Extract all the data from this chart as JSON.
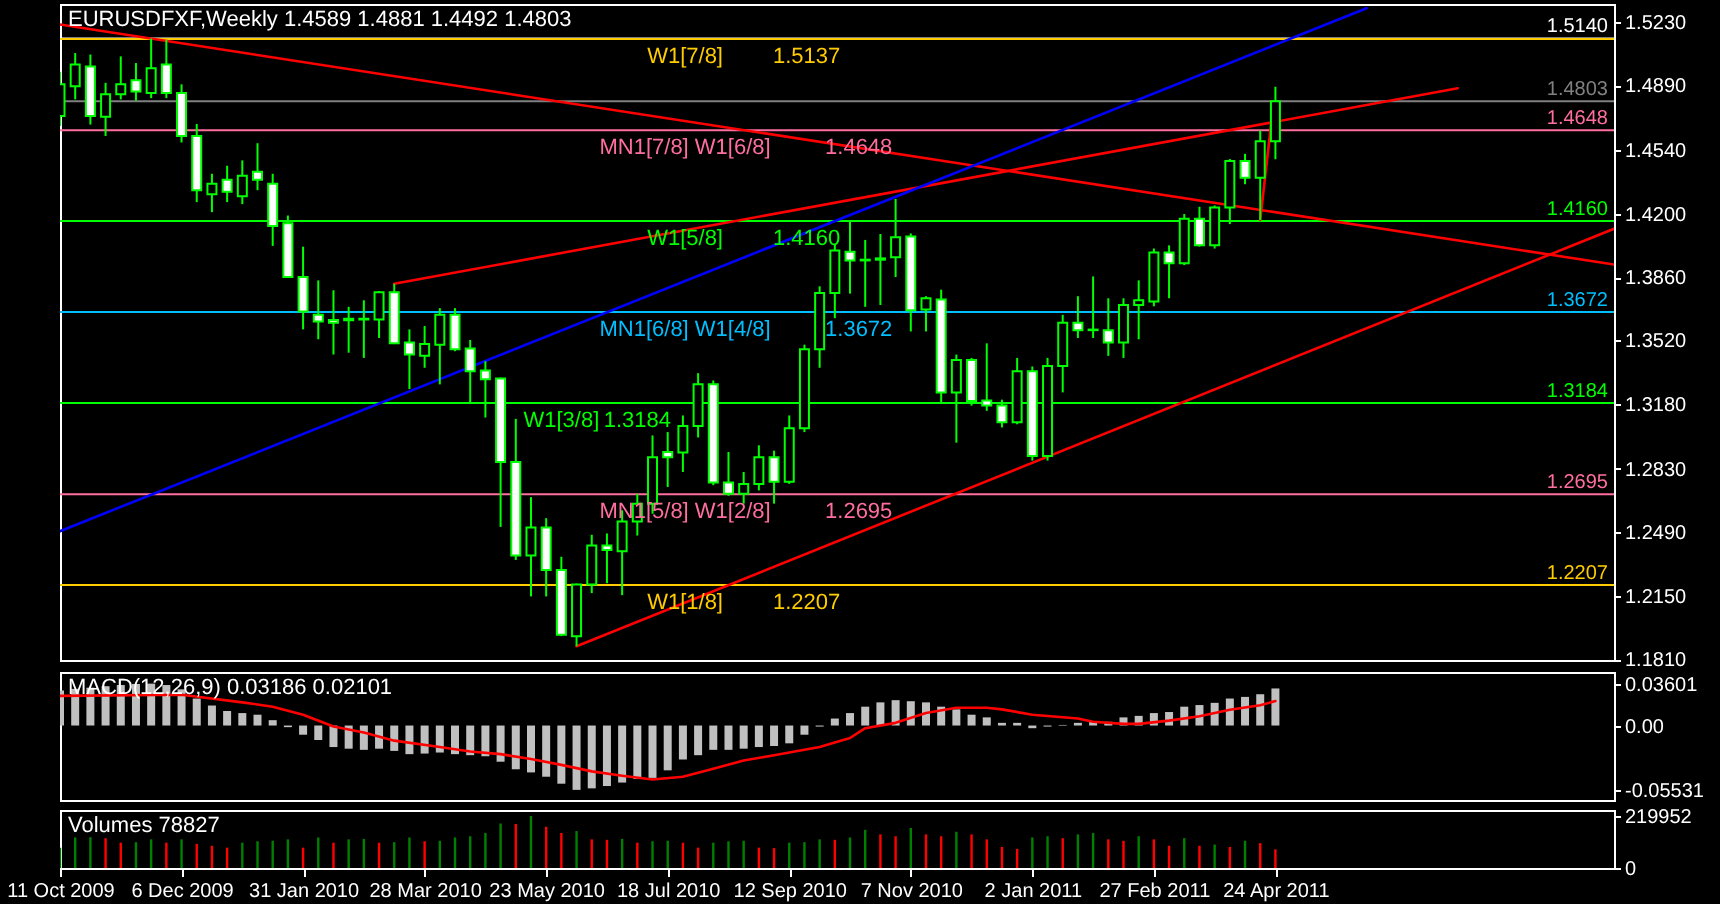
{
  "chart_data": [
    {
      "type": "candlestick",
      "title": "EURUSDFXF,Weekly  1.4589 1.4881 1.4492 1.4803",
      "x": [
        "2009-10-11",
        "2009-10-18",
        "2009-10-25",
        "2009-11-01",
        "2009-11-08",
        "2009-11-15",
        "2009-11-22",
        "2009-11-29",
        "2009-12-06",
        "2009-12-13",
        "2009-12-20",
        "2009-12-27",
        "2010-01-03",
        "2010-01-10",
        "2010-01-17",
        "2010-01-24",
        "2010-01-31",
        "2010-02-07",
        "2010-02-14",
        "2010-02-21",
        "2010-02-28",
        "2010-03-07",
        "2010-03-14",
        "2010-03-21",
        "2010-03-28",
        "2010-04-04",
        "2010-04-11",
        "2010-04-18",
        "2010-04-25",
        "2010-05-02",
        "2010-05-09",
        "2010-05-16",
        "2010-05-23",
        "2010-05-30",
        "2010-06-06",
        "2010-06-13",
        "2010-06-20",
        "2010-06-27",
        "2010-07-04",
        "2010-07-11",
        "2010-07-18",
        "2010-07-25",
        "2010-08-01",
        "2010-08-08",
        "2010-08-15",
        "2010-08-22",
        "2010-08-29",
        "2010-09-05",
        "2010-09-12",
        "2010-09-19",
        "2010-09-26",
        "2010-10-03",
        "2010-10-10",
        "2010-10-17",
        "2010-10-24",
        "2010-10-31",
        "2010-11-07",
        "2010-11-14",
        "2010-11-21",
        "2010-11-28",
        "2010-12-05",
        "2010-12-12",
        "2010-12-19",
        "2010-12-26",
        "2011-01-02",
        "2011-01-09",
        "2011-01-16",
        "2011-01-23",
        "2011-01-30",
        "2011-02-06",
        "2011-02-13",
        "2011-02-20",
        "2011-02-27",
        "2011-03-06",
        "2011-03-13",
        "2011-03-20",
        "2011-03-27",
        "2011-04-03",
        "2011-04-10",
        "2011-04-17",
        "2011-04-24"
      ],
      "ohlc": [
        [
          1.4724,
          1.4962,
          1.467,
          1.4894
        ],
        [
          1.4884,
          1.5062,
          1.4813,
          1.5001
        ],
        [
          1.499,
          1.5054,
          1.4678,
          1.4724
        ],
        [
          1.472,
          1.4902,
          1.4617,
          1.4841
        ],
        [
          1.4841,
          1.5044,
          1.4813,
          1.4894
        ],
        [
          1.4916,
          1.5008,
          1.4806,
          1.4855
        ],
        [
          1.4848,
          1.514,
          1.482,
          1.498
        ],
        [
          1.5001,
          1.5133,
          1.482,
          1.4848
        ],
        [
          1.4848,
          1.4894,
          1.4582,
          1.4617
        ],
        [
          1.4617,
          1.4681,
          1.4262,
          1.4326
        ],
        [
          1.4304,
          1.4414,
          1.4208,
          1.4361
        ],
        [
          1.4382,
          1.4457,
          1.4262,
          1.4318
        ],
        [
          1.4294,
          1.4486,
          1.4251,
          1.4404
        ],
        [
          1.4425,
          1.4578,
          1.4326,
          1.4382
        ],
        [
          1.4361,
          1.4414,
          1.4027,
          1.4134
        ],
        [
          1.4148,
          1.419,
          1.3858,
          1.386
        ],
        [
          1.386,
          1.4023,
          1.3579,
          1.3675
        ],
        [
          1.3657,
          1.3842,
          1.3526,
          1.3622
        ],
        [
          1.3629,
          1.3789,
          1.3444,
          1.3614
        ],
        [
          1.3628,
          1.37,
          1.3454,
          1.3636
        ],
        [
          1.3636,
          1.3735,
          1.3426,
          1.3632
        ],
        [
          1.3632,
          1.3785,
          1.3533,
          1.3778
        ],
        [
          1.3778,
          1.3824,
          1.35,
          1.3504
        ],
        [
          1.3508,
          1.3579,
          1.3259,
          1.3444
        ],
        [
          1.3437,
          1.3597,
          1.3373,
          1.3501
        ],
        [
          1.3497,
          1.3693,
          1.3284,
          1.3657
        ],
        [
          1.3657,
          1.3693,
          1.3462,
          1.3472
        ],
        [
          1.3476,
          1.3522,
          1.3188,
          1.3355
        ],
        [
          1.3358,
          1.3408,
          1.3106,
          1.3312
        ],
        [
          1.3316,
          1.332,
          1.2519,
          1.2868
        ],
        [
          1.2868,
          1.3099,
          1.2342,
          1.2366
        ],
        [
          1.2366,
          1.2679,
          1.2146,
          1.2516
        ],
        [
          1.2516,
          1.2566,
          1.2146,
          1.2288
        ],
        [
          1.2288,
          1.2359,
          1.1933,
          1.194
        ],
        [
          1.1933,
          1.2215,
          1.1879,
          1.221
        ],
        [
          1.221,
          1.2477,
          1.2164,
          1.242
        ],
        [
          1.242,
          1.2484,
          1.2217,
          1.2395
        ],
        [
          1.2388,
          1.2608,
          1.2153,
          1.2548
        ],
        [
          1.2548,
          1.2697,
          1.2473,
          1.2644
        ],
        [
          1.2644,
          1.301,
          1.259,
          1.2893
        ],
        [
          1.2921,
          1.3028,
          1.2733,
          1.2893
        ],
        [
          1.2918,
          1.3117,
          1.2814,
          1.306
        ],
        [
          1.306,
          1.3344,
          1.2999,
          1.3284
        ],
        [
          1.3284,
          1.3305,
          1.2743,
          1.2758
        ],
        [
          1.2758,
          1.2921,
          1.2686,
          1.2697
        ],
        [
          1.2697,
          1.2814,
          1.2644,
          1.275
        ],
        [
          1.275,
          1.2957,
          1.2715,
          1.2893
        ],
        [
          1.2893,
          1.2928,
          1.2644,
          1.2761
        ],
        [
          1.2761,
          1.3117,
          1.275,
          1.3049
        ],
        [
          1.3049,
          1.3497,
          1.3028,
          1.3472
        ],
        [
          1.3472,
          1.381,
          1.3373,
          1.3774
        ],
        [
          1.3774,
          1.4038,
          1.3639,
          1.4002
        ],
        [
          1.3995,
          1.4162,
          1.3771,
          1.3949
        ],
        [
          1.3949,
          1.4059,
          1.37,
          1.3953
        ],
        [
          1.3953,
          1.4091,
          1.371,
          1.396
        ],
        [
          1.3966,
          1.4279,
          1.386,
          1.4073
        ],
        [
          1.4077,
          1.4094,
          1.3568,
          1.3682
        ],
        [
          1.3686,
          1.3757,
          1.3568,
          1.3746
        ],
        [
          1.3739,
          1.3792,
          1.3188,
          1.3241
        ],
        [
          1.3241,
          1.3444,
          1.2971,
          1.3415
        ],
        [
          1.3415,
          1.3426,
          1.317,
          1.3195
        ],
        [
          1.3198,
          1.3504,
          1.3142,
          1.317
        ],
        [
          1.317,
          1.3202,
          1.3053,
          1.3081
        ],
        [
          1.3081,
          1.3426,
          1.307,
          1.3355
        ],
        [
          1.3355,
          1.338,
          1.2875,
          1.29
        ],
        [
          1.29,
          1.3426,
          1.2875,
          1.3383
        ],
        [
          1.3383,
          1.3657,
          1.3241,
          1.3614
        ],
        [
          1.3614,
          1.3757,
          1.3533,
          1.3575
        ],
        [
          1.3575,
          1.3863,
          1.3533,
          1.3578
        ],
        [
          1.3575,
          1.3746,
          1.3437,
          1.3508
        ],
        [
          1.3508,
          1.3746,
          1.3426,
          1.371
        ],
        [
          1.371,
          1.3842,
          1.3526,
          1.3735
        ],
        [
          1.3728,
          1.4013,
          1.3703,
          1.3991
        ],
        [
          1.3991,
          1.403,
          1.3746,
          1.3934
        ],
        [
          1.3934,
          1.4198,
          1.3924,
          1.4173
        ],
        [
          1.4173,
          1.4237,
          1.4023,
          1.403
        ],
        [
          1.403,
          1.4244,
          1.4013,
          1.4233
        ],
        [
          1.4233,
          1.4493,
          1.4144,
          1.4482
        ],
        [
          1.4482,
          1.4521,
          1.4358,
          1.4393
        ],
        [
          1.4393,
          1.4646,
          1.4166,
          1.4589
        ],
        [
          1.4589,
          1.4881,
          1.4492,
          1.4803
        ]
      ],
      "color": "#00ff00",
      "colors": [
        "#000000",
        "#000000",
        "#ffffff",
        "#000000",
        "#000000",
        "#ffffff",
        "#000000",
        "#ffffff",
        "#ffffff",
        "#ffffff",
        "#000000",
        "#ffffff",
        "#000000",
        "#ffffff",
        "#ffffff",
        "#ffffff",
        "#ffffff",
        "#ffffff",
        "#ffffff",
        "#000000",
        "#ffffff",
        "#000000",
        "#ffffff",
        "#ffffff",
        "#000000",
        "#000000",
        "#ffffff",
        "#ffffff",
        "#ffffff",
        "#ffffff",
        "#ffffff",
        "#000000",
        "#ffffff",
        "#ffffff",
        "#000000",
        "#000000",
        "#ffffff",
        "#000000",
        "#000000",
        "#000000",
        "#ffffff",
        "#000000",
        "#000000",
        "#ffffff",
        "#ffffff",
        "#000000",
        "#000000",
        "#ffffff",
        "#000000",
        "#000000",
        "#000000",
        "#000000",
        "#ffffff",
        "#000000",
        "#000000",
        "#000000",
        "#ffffff",
        "#000000",
        "#ffffff",
        "#000000",
        "#ffffff",
        "#ffffff",
        "#ffffff",
        "#000000",
        "#ffffff",
        "#000000",
        "#000000",
        "#ffffff",
        "#000000",
        "#ffffff",
        "#000000",
        "#000000",
        "#000000",
        "#ffffff",
        "#000000",
        "#ffffff",
        "#000000",
        "#000000",
        "#ffffff",
        "#000000",
        "#000000"
      ],
      "series": [
        {
          "type": "line",
          "color": "#ff0000",
          "x": [
            "2009-10-11",
            "2011-09-27"
          ],
          "values": [
            1.5215,
            1.3927
          ]
        },
        {
          "type": "line",
          "color": "#ff0000",
          "x": [
            "2010-03-14",
            "2011-07-17"
          ],
          "values": [
            1.3824,
            1.4873
          ]
        },
        {
          "type": "line",
          "color": "#0000ff",
          "x": [
            "2009-10-11",
            "2011-06-05"
          ],
          "values": [
            1.2496,
            1.5302
          ]
        },
        {
          "type": "line",
          "color": "#ff0000",
          "x": [
            "2010-06-06",
            "2011-09-27"
          ],
          "values": [
            1.1879,
            1.4119
          ]
        },
        {
          "type": "line",
          "color": "#ff0000",
          "x": [
            "2011-04-17",
            "2011-04-22"
          ],
          "values": [
            1.4166,
            1.468
          ]
        }
      ],
      "ref_lines": [
        {
          "axis": "y",
          "value": 1.514,
          "label": "1.5140",
          "color": "#ffffff"
        },
        {
          "axis": "y",
          "value": 1.5137,
          "color": "#ffcc00"
        },
        {
          "axis": "y",
          "value": 1.4803,
          "label": "1.4803",
          "color": "#808080"
        },
        {
          "axis": "y",
          "value": 1.4648,
          "label": "1.4648",
          "color": "#ff6e9e"
        },
        {
          "axis": "y",
          "value": 1.416,
          "label": "1.4160",
          "color": "#00ff00"
        },
        {
          "axis": "y",
          "value": 1.3672,
          "label": "1.3672",
          "color": "#00bfff"
        },
        {
          "axis": "y",
          "value": 1.3184,
          "label": "1.3184",
          "color": "#00ff00"
        },
        {
          "axis": "y",
          "value": 1.2695,
          "label": "1.2695",
          "color": "#ff6e9e"
        },
        {
          "axis": "y",
          "value": 1.2207,
          "label": "1.2207",
          "color": "#ffcc00"
        }
      ],
      "annotations": [
        {
          "text": "W1[7/8]",
          "x": "2010-07-26",
          "y": 1.5137
        },
        {
          "text": "1.5137",
          "x": "2010-09-20",
          "y": 1.5137
        },
        {
          "text": "MN1[7/8] W1[6/8]",
          "x": "2010-07-26",
          "y": 1.4648
        },
        {
          "text": "1.4648",
          "x": "2010-10-14",
          "y": 1.4648
        },
        {
          "text": "W1[5/8]",
          "x": "2010-07-26",
          "y": 1.416
        },
        {
          "text": "1.4160",
          "x": "2010-09-20",
          "y": 1.416
        },
        {
          "text": "MN1[6/8] W1[4/8]",
          "x": "2010-07-26",
          "y": 1.3672
        },
        {
          "text": "1.3672",
          "x": "2010-10-14",
          "y": 1.3672
        },
        {
          "text": "W1[3/8]",
          "x": "2010-05-30",
          "y": 1.3184
        },
        {
          "text": "1.3184",
          "x": "2010-07-04",
          "y": 1.3184
        },
        {
          "text": "MN1[5/8] W1[2/8]",
          "x": "2010-07-26",
          "y": 1.2695
        },
        {
          "text": "1.2695",
          "x": "2010-10-14",
          "y": 1.2695
        },
        {
          "text": "W1[1/8]",
          "x": "2010-07-26",
          "y": 1.2207
        },
        {
          "text": "1.2207",
          "x": "2010-09-20",
          "y": 1.2207
        }
      ],
      "xlim": [
        "2009-10-11",
        "2011-09-27"
      ],
      "ylim": [
        1.1805,
        1.5325
      ],
      "yticks": [
        {
          "value": 1.523,
          "label": "1.5230"
        },
        {
          "value": 1.489,
          "label": "1.4890"
        },
        {
          "value": 1.454,
          "label": "1.4540"
        },
        {
          "value": 1.42,
          "label": "1.4200"
        },
        {
          "value": 1.386,
          "label": "1.3860"
        },
        {
          "value": 1.352,
          "label": "1.3520"
        },
        {
          "value": 1.318,
          "label": "1.3180"
        },
        {
          "value": 1.283,
          "label": "1.2830"
        },
        {
          "value": 1.249,
          "label": "1.2490"
        },
        {
          "value": 1.215,
          "label": "1.2150"
        },
        {
          "value": 1.181,
          "label": "1.1810"
        }
      ],
      "tick_labels": "y"
    },
    {
      "type": "bar",
      "title": "MACD(12,26,9) 0.03186 0.02101",
      "x": [
        "2009-10-11",
        "2009-10-18",
        "2009-10-25",
        "2009-11-01",
        "2009-11-08",
        "2009-11-15",
        "2009-11-22",
        "2009-11-29",
        "2009-12-06",
        "2009-12-13",
        "2009-12-20",
        "2009-12-27",
        "2010-01-03",
        "2010-01-10",
        "2010-01-17",
        "2010-01-24",
        "2010-01-31",
        "2010-02-07",
        "2010-02-14",
        "2010-02-21",
        "2010-02-28",
        "2010-03-07",
        "2010-03-14",
        "2010-03-21",
        "2010-03-28",
        "2010-04-04",
        "2010-04-11",
        "2010-04-18",
        "2010-04-25",
        "2010-05-02",
        "2010-05-09",
        "2010-05-16",
        "2010-05-23",
        "2010-05-30",
        "2010-06-06",
        "2010-06-13",
        "2010-06-20",
        "2010-06-27",
        "2010-07-04",
        "2010-07-11",
        "2010-07-18",
        "2010-07-25",
        "2010-08-01",
        "2010-08-08",
        "2010-08-15",
        "2010-08-22",
        "2010-08-29",
        "2010-09-05",
        "2010-09-12",
        "2010-09-19",
        "2010-09-26",
        "2010-10-03",
        "2010-10-10",
        "2010-10-17",
        "2010-10-24",
        "2010-10-31",
        "2010-11-07",
        "2010-11-14",
        "2010-11-21",
        "2010-11-28",
        "2010-12-05",
        "2010-12-12",
        "2010-12-19",
        "2010-12-26",
        "2011-01-02",
        "2011-01-09",
        "2011-01-16",
        "2011-01-23",
        "2011-01-30",
        "2011-02-06",
        "2011-02-13",
        "2011-02-20",
        "2011-02-27",
        "2011-03-06",
        "2011-03-13",
        "2011-03-20",
        "2011-03-27",
        "2011-04-03",
        "2011-04-10",
        "2011-04-17",
        "2011-04-24"
      ],
      "series": [
        {
          "type": "bar",
          "color": "#c0c0c0",
          "values": [
            0.0301,
            0.0315,
            0.0325,
            0.0338,
            0.0348,
            0.0357,
            0.03601,
            0.0348,
            0.0311,
            0.0232,
            0.0172,
            0.0125,
            0.0107,
            0.0093,
            0.0046,
            -0.0014,
            -0.0079,
            -0.0125,
            -0.0185,
            -0.0199,
            -0.0209,
            -0.0199,
            -0.0218,
            -0.0246,
            -0.0241,
            -0.0232,
            -0.0246,
            -0.0255,
            -0.0264,
            -0.0311,
            -0.0376,
            -0.0403,
            -0.044,
            -0.05,
            -0.05531,
            -0.054,
            -0.052,
            -0.049,
            -0.046,
            -0.045,
            -0.0385,
            -0.0292,
            -0.0255,
            -0.0209,
            -0.0209,
            -0.0199,
            -0.0185,
            -0.0176,
            -0.0153,
            -0.0079,
            -0.0009,
            0.006,
            0.0107,
            0.0162,
            0.0199,
            0.0218,
            0.0209,
            0.0199,
            0.0162,
            0.0139,
            0.0093,
            0.007,
            0.0023,
            0.0023,
            -0.0023,
            -0.0009,
            0.0005,
            0.0023,
            0.0032,
            0.0032,
            0.007,
            0.0083,
            0.0107,
            0.0116,
            0.0162,
            0.0176,
            0.0195,
            0.0232,
            0.0246,
            0.0269,
            0.03186
          ]
        },
        {
          "type": "line",
          "color": "#ff0000",
          "x": [
            "2009-10-11",
            "2009-12-06",
            "2010-01-03",
            "2010-01-17",
            "2010-01-31",
            "2010-02-14",
            "2010-02-28",
            "2010-03-14",
            "2010-04-04",
            "2010-04-18",
            "2010-05-02",
            "2010-05-16",
            "2010-05-30",
            "2010-06-13",
            "2010-06-27",
            "2010-07-11",
            "2010-07-25",
            "2010-08-08",
            "2010-08-22",
            "2010-09-05",
            "2010-09-26",
            "2010-10-10",
            "2010-10-17",
            "2010-10-31",
            "2010-11-14",
            "2010-11-28",
            "2010-12-12",
            "2010-12-19",
            "2011-01-02",
            "2011-01-23",
            "2011-01-30",
            "2011-02-13",
            "2011-02-20",
            "2011-03-06",
            "2011-03-20",
            "2011-04-03",
            "2011-04-17",
            "2011-04-24"
          ],
          "values": [
            0.0255,
            0.0264,
            0.0199,
            0.0162,
            0.0093,
            -0.0009,
            -0.006,
            -0.013,
            -0.0185,
            -0.0223,
            -0.0246,
            -0.0287,
            -0.0338,
            -0.0394,
            -0.0431,
            -0.0464,
            -0.044,
            -0.0371,
            -0.0301,
            -0.0255,
            -0.0185,
            -0.0107,
            -0.0023,
            0.0023,
            0.0107,
            0.0153,
            0.0153,
            0.0139,
            0.0093,
            0.006,
            0.0032,
            0.0014,
            0.0014,
            0.0042,
            0.0079,
            0.0135,
            0.0175,
            0.02101
          ]
        }
      ],
      "xlim": [
        "2009-10-11",
        "2011-09-27"
      ],
      "ylim": [
        -0.064,
        0.046
      ],
      "yticks": [
        0.03601,
        {
          "value": 0,
          "label": "0.00"
        },
        -0.05531
      ],
      "tick_labels": "y"
    },
    {
      "type": "bar",
      "title": "Volumes 78827",
      "x": [
        "2009-10-11",
        "2009-10-18",
        "2009-10-25",
        "2009-11-01",
        "2009-11-08",
        "2009-11-15",
        "2009-11-22",
        "2009-11-29",
        "2009-12-06",
        "2009-12-13",
        "2009-12-20",
        "2009-12-27",
        "2010-01-03",
        "2010-01-10",
        "2010-01-17",
        "2010-01-24",
        "2010-01-31",
        "2010-02-07",
        "2010-02-14",
        "2010-02-21",
        "2010-02-28",
        "2010-03-07",
        "2010-03-14",
        "2010-03-21",
        "2010-03-28",
        "2010-04-04",
        "2010-04-11",
        "2010-04-18",
        "2010-04-25",
        "2010-05-02",
        "2010-05-09",
        "2010-05-16",
        "2010-05-23",
        "2010-05-30",
        "2010-06-06",
        "2010-06-13",
        "2010-06-20",
        "2010-06-27",
        "2010-07-04",
        "2010-07-11",
        "2010-07-18",
        "2010-07-25",
        "2010-08-01",
        "2010-08-08",
        "2010-08-15",
        "2010-08-22",
        "2010-08-29",
        "2010-09-05",
        "2010-09-12",
        "2010-09-19",
        "2010-09-26",
        "2010-10-03",
        "2010-10-10",
        "2010-10-17",
        "2010-10-24",
        "2010-10-31",
        "2010-11-07",
        "2010-11-14",
        "2010-11-21",
        "2010-11-28",
        "2010-12-05",
        "2010-12-12",
        "2010-12-19",
        "2010-12-26",
        "2011-01-02",
        "2011-01-09",
        "2011-01-16",
        "2011-01-23",
        "2011-01-30",
        "2011-02-06",
        "2011-02-13",
        "2011-02-20",
        "2011-02-27",
        "2011-03-06",
        "2011-03-13",
        "2011-03-20",
        "2011-03-27",
        "2011-04-03",
        "2011-04-10",
        "2011-04-17",
        "2011-04-24"
      ],
      "values": [
        86000,
        129000,
        130000,
        126000,
        107000,
        109000,
        121000,
        107000,
        121000,
        102000,
        94000,
        86000,
        107000,
        113000,
        115000,
        121000,
        86000,
        129000,
        107000,
        121000,
        123000,
        107000,
        109000,
        129000,
        113000,
        115000,
        129000,
        134000,
        148000,
        188000,
        186000,
        219952,
        174000,
        148000,
        156000,
        121000,
        119000,
        123000,
        107000,
        113000,
        115000,
        107000,
        86000,
        107000,
        113000,
        115000,
        86000,
        84000,
        107000,
        109000,
        121000,
        119000,
        129000,
        161000,
        142000,
        134000,
        169000,
        142000,
        134000,
        153000,
        142000,
        121000,
        89000,
        81000,
        129000,
        134000,
        126000,
        142000,
        148000,
        121000,
        115000,
        134000,
        121000,
        94000,
        126000,
        94000,
        99000,
        89000,
        115000,
        105000,
        78827
      ],
      "colors": [
        "#008000",
        "#008000",
        "#008000",
        "#ff0000",
        "#ff0000",
        "#008000",
        "#008000",
        "#ff0000",
        "#008000",
        "#ff0000",
        "#ff0000",
        "#ff0000",
        "#008000",
        "#008000",
        "#008000",
        "#008000",
        "#ff0000",
        "#008000",
        "#ff0000",
        "#008000",
        "#008000",
        "#ff0000",
        "#008000",
        "#008000",
        "#ff0000",
        "#008000",
        "#008000",
        "#008000",
        "#008000",
        "#008000",
        "#ff0000",
        "#008000",
        "#ff0000",
        "#ff0000",
        "#008000",
        "#ff0000",
        "#ff0000",
        "#008000",
        "#ff0000",
        "#008000",
        "#008000",
        "#ff0000",
        "#ff0000",
        "#008000",
        "#008000",
        "#008000",
        "#ff0000",
        "#ff0000",
        "#008000",
        "#008000",
        "#008000",
        "#ff0000",
        "#008000",
        "#008000",
        "#ff0000",
        "#ff0000",
        "#008000",
        "#ff0000",
        "#ff0000",
        "#008000",
        "#ff0000",
        "#ff0000",
        "#ff0000",
        "#ff0000",
        "#008000",
        "#008000",
        "#ff0000",
        "#008000",
        "#008000",
        "#ff0000",
        "#ff0000",
        "#008000",
        "#ff0000",
        "#ff0000",
        "#008000",
        "#ff0000",
        "#008000",
        "#ff0000",
        "#008000",
        "#ff0000",
        "#ff0000"
      ],
      "xlim": [
        "2009-10-11",
        "2011-09-27"
      ],
      "ylim": [
        0,
        245000
      ],
      "yticks": [
        219952,
        0
      ],
      "xticks": [
        {
          "value": "2009-10-11",
          "label": "11 Oct 2009"
        },
        {
          "value": "2009-12-06",
          "label": "6 Dec 2009"
        },
        {
          "value": "2010-01-31",
          "label": "31 Jan 2010"
        },
        {
          "value": "2010-03-28",
          "label": "28 Mar 2010"
        },
        {
          "value": "2010-05-23",
          "label": "23 May 2010"
        },
        {
          "value": "2010-07-18",
          "label": "18 Jul 2010"
        },
        {
          "value": "2010-09-12",
          "label": "12 Sep 2010"
        },
        {
          "value": "2010-11-07",
          "label": "7 Nov 2010"
        },
        {
          "value": "2011-01-02",
          "label": "2 Jan 2011"
        },
        {
          "value": "2011-02-27",
          "label": "27 Feb 2011"
        },
        {
          "value": "2011-04-24",
          "label": "24 Apr 2011"
        }
      ]
    }
  ]
}
